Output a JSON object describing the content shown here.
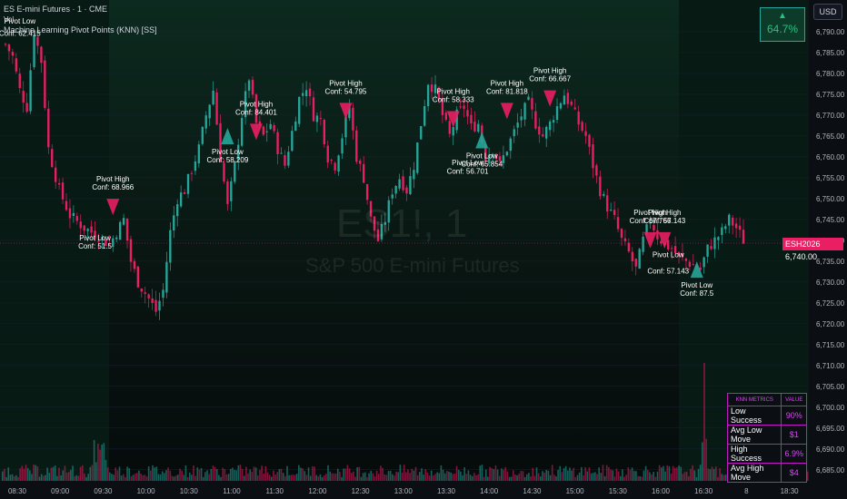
{
  "header": {
    "title": "E-mini Futures · 1 · CME",
    "symbol_prefix": "ES",
    "indicator": "Machine Learning Pivot Points (KNN) [SS]",
    "vol_label": "Vol"
  },
  "watermark": {
    "symbol": "ES1!, 1",
    "name": "S&P 500 E-mini Futures"
  },
  "badge": {
    "arrow": "▲",
    "value": "64.7%"
  },
  "currency": "USD",
  "price_tag": {
    "symbol": "ESH2026",
    "price": "6,740.00"
  },
  "stats_table": {
    "headers": [
      "KNN METRICS",
      "VALUE"
    ],
    "rows": [
      {
        "label": "Low Success",
        "value": "90%"
      },
      {
        "label": "Avg Low Move",
        "value": "$1"
      },
      {
        "label": "High Success",
        "value": "6.9%"
      },
      {
        "label": "Avg High Move",
        "value": "$4"
      }
    ]
  },
  "colors": {
    "up": "#26a69a",
    "down": "#e91e63",
    "pivot_low": "#26a69a",
    "pivot_high": "#e91e63",
    "table_border": "#c218c5"
  },
  "chart_data": {
    "type": "candlestick",
    "x_ticks": [
      "08:30",
      "09:00",
      "09:30",
      "10:00",
      "10:30",
      "11:00",
      "11:30",
      "12:00",
      "12:30",
      "13:00",
      "13:30",
      "14:00",
      "14:30",
      "15:00",
      "15:30",
      "16:00",
      "16:30",
      "8",
      "18:30"
    ],
    "y_ticks": [
      6685,
      6690,
      6695,
      6700,
      6705,
      6710,
      6715,
      6720,
      6725,
      6730,
      6735,
      6740,
      6745,
      6750,
      6755,
      6760,
      6765,
      6770,
      6775,
      6780,
      6785,
      6790
    ],
    "ylim": [
      6683,
      6795
    ],
    "close_path": [
      [
        0,
        6787
      ],
      [
        2,
        6784
      ],
      [
        4,
        6776
      ],
      [
        6,
        6772
      ],
      [
        8,
        6790
      ],
      [
        10,
        6783
      ],
      [
        12,
        6762
      ],
      [
        15,
        6752
      ],
      [
        18,
        6746
      ],
      [
        22,
        6743
      ],
      [
        26,
        6741
      ],
      [
        29,
        6739
      ],
      [
        31,
        6742
      ],
      [
        33,
        6745
      ],
      [
        35,
        6735
      ],
      [
        37,
        6730
      ],
      [
        40,
        6726
      ],
      [
        42,
        6723
      ],
      [
        44,
        6728
      ],
      [
        46,
        6742
      ],
      [
        48,
        6750
      ],
      [
        50,
        6752
      ],
      [
        52,
        6757
      ],
      [
        54,
        6762
      ],
      [
        56,
        6770
      ],
      [
        58,
        6776
      ],
      [
        60,
        6760
      ],
      [
        62,
        6748
      ],
      [
        64,
        6758
      ],
      [
        66,
        6770
      ],
      [
        68,
        6779
      ],
      [
        70,
        6768
      ],
      [
        72,
        6765
      ],
      [
        74,
        6768
      ],
      [
        76,
        6762
      ],
      [
        78,
        6758
      ],
      [
        80,
        6766
      ],
      [
        82,
        6774
      ],
      [
        84,
        6777
      ],
      [
        86,
        6770
      ],
      [
        88,
        6769
      ],
      [
        90,
        6760
      ],
      [
        92,
        6758
      ],
      [
        94,
        6765
      ],
      [
        96,
        6772
      ],
      [
        98,
        6760
      ],
      [
        100,
        6755
      ],
      [
        102,
        6745
      ],
      [
        104,
        6740
      ],
      [
        106,
        6745
      ],
      [
        108,
        6752
      ],
      [
        110,
        6755
      ],
      [
        112,
        6752
      ],
      [
        114,
        6758
      ],
      [
        116,
        6768
      ],
      [
        118,
        6778
      ],
      [
        120,
        6776
      ],
      [
        122,
        6770
      ],
      [
        124,
        6765
      ],
      [
        126,
        6770
      ],
      [
        128,
        6772
      ],
      [
        130,
        6767
      ],
      [
        132,
        6768
      ],
      [
        134,
        6760
      ],
      [
        136,
        6762
      ],
      [
        138,
        6758
      ],
      [
        140,
        6762
      ],
      [
        142,
        6766
      ],
      [
        144,
        6770
      ],
      [
        146,
        6773
      ],
      [
        148,
        6768
      ],
      [
        150,
        6765
      ],
      [
        152,
        6768
      ],
      [
        154,
        6772
      ],
      [
        156,
        6775
      ],
      [
        158,
        6772
      ],
      [
        160,
        6768
      ],
      [
        162,
        6765
      ],
      [
        164,
        6758
      ],
      [
        166,
        6752
      ],
      [
        168,
        6748
      ],
      [
        170,
        6745
      ],
      [
        172,
        6740
      ],
      [
        174,
        6737
      ],
      [
        176,
        6733
      ],
      [
        178,
        6740
      ],
      [
        180,
        6745
      ],
      [
        182,
        6741
      ],
      [
        184,
        6739
      ],
      [
        186,
        6738
      ],
      [
        188,
        6736
      ],
      [
        190,
        6735
      ],
      [
        192,
        6734
      ],
      [
        194,
        6733
      ],
      [
        196,
        6738
      ],
      [
        198,
        6740
      ],
      [
        200,
        6742
      ],
      [
        202,
        6745
      ],
      [
        204,
        6743
      ],
      [
        206,
        6740
      ]
    ],
    "volume_note": "volume bars along bottom",
    "pivots": [
      {
        "kind": "high",
        "label": "Pivot High",
        "conf": "Conf: 68.966",
        "x": 30,
        "y": 6748
      },
      {
        "kind": "low",
        "label": "Pivot Low",
        "conf": "Conf: 58.209",
        "x": 62,
        "y": 6765
      },
      {
        "kind": "high",
        "label": "Pivot High",
        "conf": "Conf: 84.401",
        "x": 70,
        "y": 6766
      },
      {
        "kind": "high",
        "label": "Pivot High",
        "conf": "Conf: 54.795",
        "x": 95,
        "y": 6771
      },
      {
        "kind": "high",
        "label": "Pivot High",
        "conf": "Conf: 58.333",
        "x": 125,
        "y": 6769
      },
      {
        "kind": "low",
        "label": "Pivot Low",
        "conf": "Conf: 65.854",
        "x": 133,
        "y": 6764
      },
      {
        "kind": "high",
        "label": "Pivot High",
        "conf": "Conf: 81.818",
        "x": 140,
        "y": 6771
      },
      {
        "kind": "high",
        "label": "Pivot High",
        "conf": "Conf: 66.667",
        "x": 152,
        "y": 6774
      },
      {
        "kind": "high",
        "label": "Pivot High",
        "conf": "Conf: 67.766",
        "x": 180,
        "y": 6740
      },
      {
        "kind": "high",
        "label": "Pivot High",
        "conf": "Conf: 57.143",
        "x": 184,
        "y": 6740
      },
      {
        "kind": "low",
        "label": "Pivot Low",
        "conf": "Conf: 87.5",
        "x": 193,
        "y": 6733
      }
    ],
    "extra_labels": [
      {
        "text": "Pivot Low",
        "x": 4,
        "y": 6792
      },
      {
        "text": "Conf: 62.415",
        "x": 4,
        "y": 6789
      },
      {
        "text": "Pivot Low",
        "x": 25,
        "y": 6740
      },
      {
        "text": "Conf: 51.5",
        "x": 25,
        "y": 6738
      },
      {
        "text": "Pivot Low",
        "x": 129,
        "y": 6758
      },
      {
        "text": "Conf: 56.701",
        "x": 129,
        "y": 6756
      },
      {
        "text": "Pivot Low",
        "x": 185,
        "y": 6736
      },
      {
        "text": "Conf: 57.143",
        "x": 185,
        "y": 6732
      }
    ]
  }
}
